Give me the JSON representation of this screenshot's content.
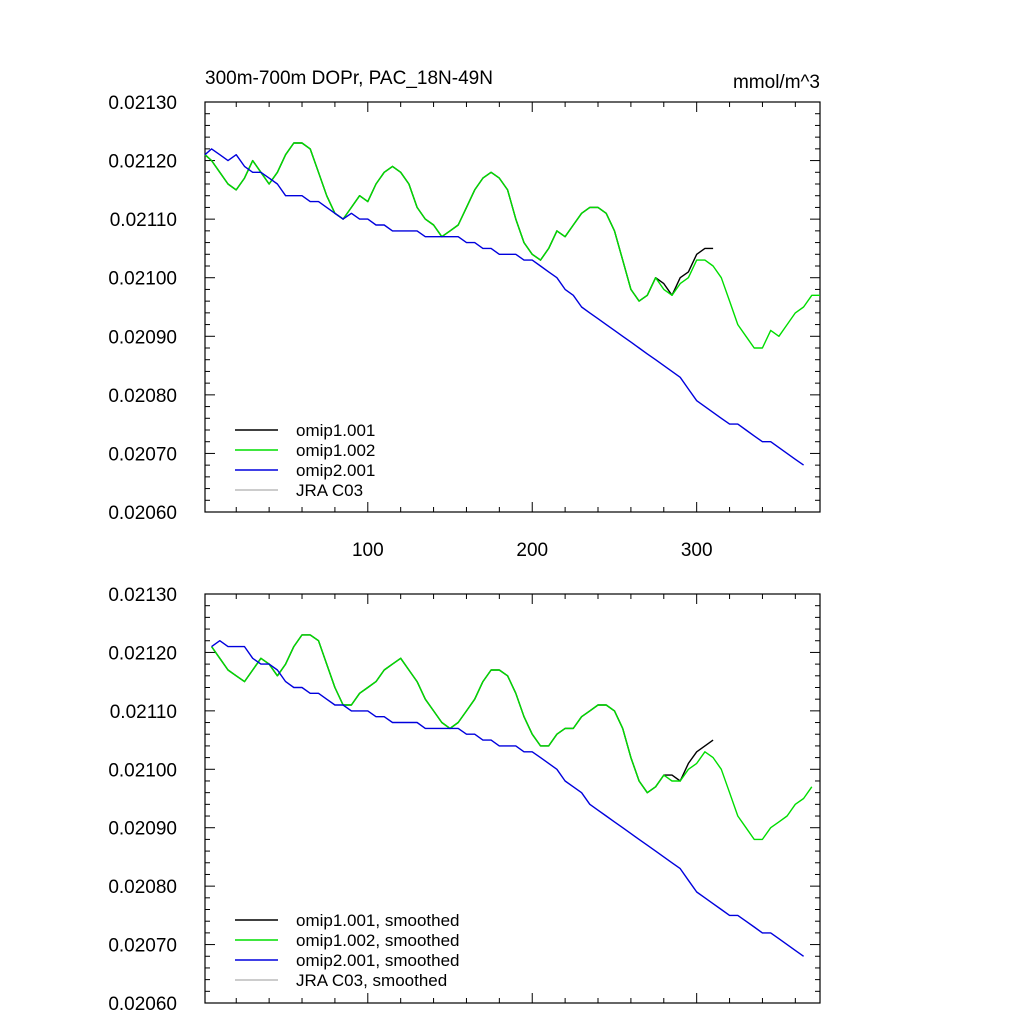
{
  "chart_data": [
    {
      "type": "line",
      "title": "300m-700m DOPr, PAC_18N-49N",
      "units": "mmol/m^3",
      "xlim": [
        1,
        375
      ],
      "ylim": [
        0.0206,
        0.0213
      ],
      "xticks": [
        "100",
        "200",
        "300"
      ],
      "yticks": [
        "0.02130",
        "0.02120",
        "0.02110",
        "0.02100",
        "0.02090",
        "0.02080",
        "0.02070",
        "0.02060"
      ],
      "legend_position": "lower-left",
      "colors": {
        "omip1.001": "#000000",
        "omip1.002": "#00dd00",
        "omip2.001": "#0000dd",
        "JRA C03": "#bbbbbb"
      },
      "series": [
        {
          "name": "omip1.001",
          "x": [
            1,
            5,
            10,
            15,
            20,
            25,
            30,
            35,
            40,
            45,
            50,
            55,
            60,
            65,
            70,
            75,
            80,
            85,
            90,
            95,
            100,
            105,
            110,
            115,
            120,
            125,
            130,
            135,
            140,
            145,
            150,
            155,
            160,
            165,
            170,
            175,
            180,
            185,
            190,
            195,
            200,
            205,
            210,
            215,
            220,
            225,
            230,
            235,
            240,
            245,
            250,
            255,
            260,
            265,
            270,
            275,
            280,
            285,
            290,
            295,
            300,
            305,
            310
          ],
          "y": [
            0.02121,
            0.0212,
            0.02118,
            0.02116,
            0.02115,
            0.02117,
            0.0212,
            0.02118,
            0.02116,
            0.02118,
            0.02121,
            0.02123,
            0.02123,
            0.02122,
            0.02118,
            0.02114,
            0.02111,
            0.0211,
            0.02112,
            0.02114,
            0.02113,
            0.02116,
            0.02118,
            0.02119,
            0.02118,
            0.02116,
            0.02112,
            0.0211,
            0.02109,
            0.02107,
            0.02108,
            0.02109,
            0.02112,
            0.02115,
            0.02117,
            0.02118,
            0.02117,
            0.02115,
            0.0211,
            0.02106,
            0.02104,
            0.02103,
            0.02105,
            0.02108,
            0.02107,
            0.02109,
            0.02111,
            0.02112,
            0.02112,
            0.02111,
            0.02108,
            0.02103,
            0.02098,
            0.02096,
            0.02097,
            0.021,
            0.02099,
            0.02097,
            0.021,
            0.02101,
            0.02104,
            0.02105,
            0.02105
          ]
        },
        {
          "name": "omip1.002",
          "x": [
            1,
            5,
            10,
            15,
            20,
            25,
            30,
            35,
            40,
            45,
            50,
            55,
            60,
            65,
            70,
            75,
            80,
            85,
            90,
            95,
            100,
            105,
            110,
            115,
            120,
            125,
            130,
            135,
            140,
            145,
            150,
            155,
            160,
            165,
            170,
            175,
            180,
            185,
            190,
            195,
            200,
            205,
            210,
            215,
            220,
            225,
            230,
            235,
            240,
            245,
            250,
            255,
            260,
            265,
            270,
            275,
            280,
            285,
            290,
            295,
            300,
            305,
            310,
            315,
            320,
            325,
            330,
            335,
            340,
            345,
            350,
            355,
            360,
            365,
            370,
            375
          ],
          "y": [
            0.02121,
            0.0212,
            0.02118,
            0.02116,
            0.02115,
            0.02117,
            0.0212,
            0.02118,
            0.02116,
            0.02118,
            0.02121,
            0.02123,
            0.02123,
            0.02122,
            0.02118,
            0.02114,
            0.02111,
            0.0211,
            0.02112,
            0.02114,
            0.02113,
            0.02116,
            0.02118,
            0.02119,
            0.02118,
            0.02116,
            0.02112,
            0.0211,
            0.02109,
            0.02107,
            0.02108,
            0.02109,
            0.02112,
            0.02115,
            0.02117,
            0.02118,
            0.02117,
            0.02115,
            0.0211,
            0.02106,
            0.02104,
            0.02103,
            0.02105,
            0.02108,
            0.02107,
            0.02109,
            0.02111,
            0.02112,
            0.02112,
            0.02111,
            0.02108,
            0.02103,
            0.02098,
            0.02096,
            0.02097,
            0.021,
            0.02098,
            0.02097,
            0.02099,
            0.021,
            0.02103,
            0.02103,
            0.02102,
            0.021,
            0.02096,
            0.02092,
            0.0209,
            0.02088,
            0.02088,
            0.02091,
            0.0209,
            0.02092,
            0.02094,
            0.02095,
            0.02097,
            0.02097
          ]
        },
        {
          "name": "omip2.001",
          "x": [
            1,
            5,
            10,
            15,
            20,
            25,
            30,
            35,
            40,
            45,
            50,
            55,
            60,
            65,
            70,
            75,
            80,
            85,
            90,
            95,
            100,
            105,
            110,
            115,
            120,
            125,
            130,
            135,
            140,
            145,
            150,
            155,
            160,
            165,
            170,
            175,
            180,
            185,
            190,
            195,
            200,
            205,
            210,
            215,
            220,
            225,
            230,
            235,
            240,
            245,
            250,
            255,
            260,
            265,
            270,
            275,
            280,
            285,
            290,
            295,
            300,
            305,
            310,
            315,
            320,
            325,
            330,
            335,
            340,
            345,
            350,
            355,
            360,
            365
          ],
          "y": [
            0.02121,
            0.02122,
            0.02121,
            0.0212,
            0.02121,
            0.02119,
            0.02118,
            0.02118,
            0.02117,
            0.02116,
            0.02114,
            0.02114,
            0.02114,
            0.02113,
            0.02113,
            0.02112,
            0.02111,
            0.0211,
            0.02111,
            0.0211,
            0.0211,
            0.02109,
            0.02109,
            0.02108,
            0.02108,
            0.02108,
            0.02108,
            0.02107,
            0.02107,
            0.02107,
            0.02107,
            0.02107,
            0.02106,
            0.02106,
            0.02105,
            0.02105,
            0.02104,
            0.02104,
            0.02104,
            0.02103,
            0.02103,
            0.02102,
            0.02101,
            0.021,
            0.02098,
            0.02097,
            0.02095,
            0.02094,
            0.02093,
            0.02092,
            0.02091,
            0.0209,
            0.02089,
            0.02088,
            0.02087,
            0.02086,
            0.02085,
            0.02084,
            0.02083,
            0.02081,
            0.02079,
            0.02078,
            0.02077,
            0.02076,
            0.02075,
            0.02075,
            0.02074,
            0.02073,
            0.02072,
            0.02072,
            0.02071,
            0.0207,
            0.02069,
            0.02068
          ]
        }
      ]
    },
    {
      "type": "line",
      "xlim": [
        1,
        375
      ],
      "ylim": [
        0.0206,
        0.0213
      ],
      "yticks": [
        "0.02130",
        "0.02120",
        "0.02110",
        "0.02100",
        "0.02090",
        "0.02080",
        "0.02070",
        "0.02060"
      ],
      "legend_position": "lower-left",
      "colors": {
        "omip1.001, smoothed": "#000000",
        "omip1.002, smoothed": "#00dd00",
        "omip2.001, smoothed": "#0000dd",
        "JRA C03, smoothed": "#bbbbbb"
      },
      "series": [
        {
          "name": "omip1.001, smoothed",
          "x": [
            5,
            10,
            15,
            20,
            25,
            30,
            35,
            40,
            45,
            50,
            55,
            60,
            65,
            70,
            75,
            80,
            85,
            90,
            95,
            100,
            105,
            110,
            115,
            120,
            125,
            130,
            135,
            140,
            145,
            150,
            155,
            160,
            165,
            170,
            175,
            180,
            185,
            190,
            195,
            200,
            205,
            210,
            215,
            220,
            225,
            230,
            235,
            240,
            245,
            250,
            255,
            260,
            265,
            270,
            275,
            280,
            285,
            290,
            295,
            300,
            305,
            310
          ],
          "y": [
            0.02121,
            0.02119,
            0.02117,
            0.02116,
            0.02115,
            0.02117,
            0.02119,
            0.02118,
            0.02116,
            0.02118,
            0.02121,
            0.02123,
            0.02123,
            0.02122,
            0.02118,
            0.02114,
            0.02111,
            0.02111,
            0.02113,
            0.02114,
            0.02115,
            0.02117,
            0.02118,
            0.02119,
            0.02117,
            0.02115,
            0.02112,
            0.0211,
            0.02108,
            0.02107,
            0.02108,
            0.0211,
            0.02112,
            0.02115,
            0.02117,
            0.02117,
            0.02116,
            0.02113,
            0.02109,
            0.02106,
            0.02104,
            0.02104,
            0.02106,
            0.02107,
            0.02107,
            0.02109,
            0.0211,
            0.02111,
            0.02111,
            0.0211,
            0.02107,
            0.02102,
            0.02098,
            0.02096,
            0.02097,
            0.02099,
            0.02099,
            0.02098,
            0.02101,
            0.02103,
            0.02104,
            0.02105
          ]
        },
        {
          "name": "omip1.002, smoothed",
          "x": [
            5,
            10,
            15,
            20,
            25,
            30,
            35,
            40,
            45,
            50,
            55,
            60,
            65,
            70,
            75,
            80,
            85,
            90,
            95,
            100,
            105,
            110,
            115,
            120,
            125,
            130,
            135,
            140,
            145,
            150,
            155,
            160,
            165,
            170,
            175,
            180,
            185,
            190,
            195,
            200,
            205,
            210,
            215,
            220,
            225,
            230,
            235,
            240,
            245,
            250,
            255,
            260,
            265,
            270,
            275,
            280,
            285,
            290,
            295,
            300,
            305,
            310,
            315,
            320,
            325,
            330,
            335,
            340,
            345,
            350,
            355,
            360,
            365,
            370
          ],
          "y": [
            0.02121,
            0.02119,
            0.02117,
            0.02116,
            0.02115,
            0.02117,
            0.02119,
            0.02118,
            0.02116,
            0.02118,
            0.02121,
            0.02123,
            0.02123,
            0.02122,
            0.02118,
            0.02114,
            0.02111,
            0.02111,
            0.02113,
            0.02114,
            0.02115,
            0.02117,
            0.02118,
            0.02119,
            0.02117,
            0.02115,
            0.02112,
            0.0211,
            0.02108,
            0.02107,
            0.02108,
            0.0211,
            0.02112,
            0.02115,
            0.02117,
            0.02117,
            0.02116,
            0.02113,
            0.02109,
            0.02106,
            0.02104,
            0.02104,
            0.02106,
            0.02107,
            0.02107,
            0.02109,
            0.0211,
            0.02111,
            0.02111,
            0.0211,
            0.02107,
            0.02102,
            0.02098,
            0.02096,
            0.02097,
            0.02099,
            0.02098,
            0.02098,
            0.021,
            0.02101,
            0.02103,
            0.02102,
            0.021,
            0.02096,
            0.02092,
            0.0209,
            0.02088,
            0.02088,
            0.0209,
            0.02091,
            0.02092,
            0.02094,
            0.02095,
            0.02097
          ]
        },
        {
          "name": "omip2.001, smoothed",
          "x": [
            5,
            10,
            15,
            20,
            25,
            30,
            35,
            40,
            45,
            50,
            55,
            60,
            65,
            70,
            75,
            80,
            85,
            90,
            95,
            100,
            105,
            110,
            115,
            120,
            125,
            130,
            135,
            140,
            145,
            150,
            155,
            160,
            165,
            170,
            175,
            180,
            185,
            190,
            195,
            200,
            205,
            210,
            215,
            220,
            225,
            230,
            235,
            240,
            245,
            250,
            255,
            260,
            265,
            270,
            275,
            280,
            285,
            290,
            295,
            300,
            305,
            310,
            315,
            320,
            325,
            330,
            335,
            340,
            345,
            350,
            355,
            360,
            365
          ],
          "y": [
            0.02121,
            0.02122,
            0.02121,
            0.02121,
            0.02121,
            0.02119,
            0.02118,
            0.02118,
            0.02117,
            0.02115,
            0.02114,
            0.02114,
            0.02113,
            0.02113,
            0.02112,
            0.02111,
            0.02111,
            0.0211,
            0.0211,
            0.0211,
            0.02109,
            0.02109,
            0.02108,
            0.02108,
            0.02108,
            0.02108,
            0.02107,
            0.02107,
            0.02107,
            0.02107,
            0.02107,
            0.02106,
            0.02106,
            0.02105,
            0.02105,
            0.02104,
            0.02104,
            0.02104,
            0.02103,
            0.02103,
            0.02102,
            0.02101,
            0.021,
            0.02098,
            0.02097,
            0.02096,
            0.02094,
            0.02093,
            0.02092,
            0.02091,
            0.0209,
            0.02089,
            0.02088,
            0.02087,
            0.02086,
            0.02085,
            0.02084,
            0.02083,
            0.02081,
            0.02079,
            0.02078,
            0.02077,
            0.02076,
            0.02075,
            0.02075,
            0.02074,
            0.02073,
            0.02072,
            0.02072,
            0.02071,
            0.0207,
            0.02069,
            0.02068
          ]
        }
      ]
    }
  ],
  "legend_order_top": [
    "omip1.001",
    "omip1.002",
    "omip2.001",
    "JRA C03"
  ],
  "legend_order_bottom": [
    "omip1.001, smoothed",
    "omip1.002, smoothed",
    "omip2.001, smoothed",
    "JRA C03, smoothed"
  ]
}
